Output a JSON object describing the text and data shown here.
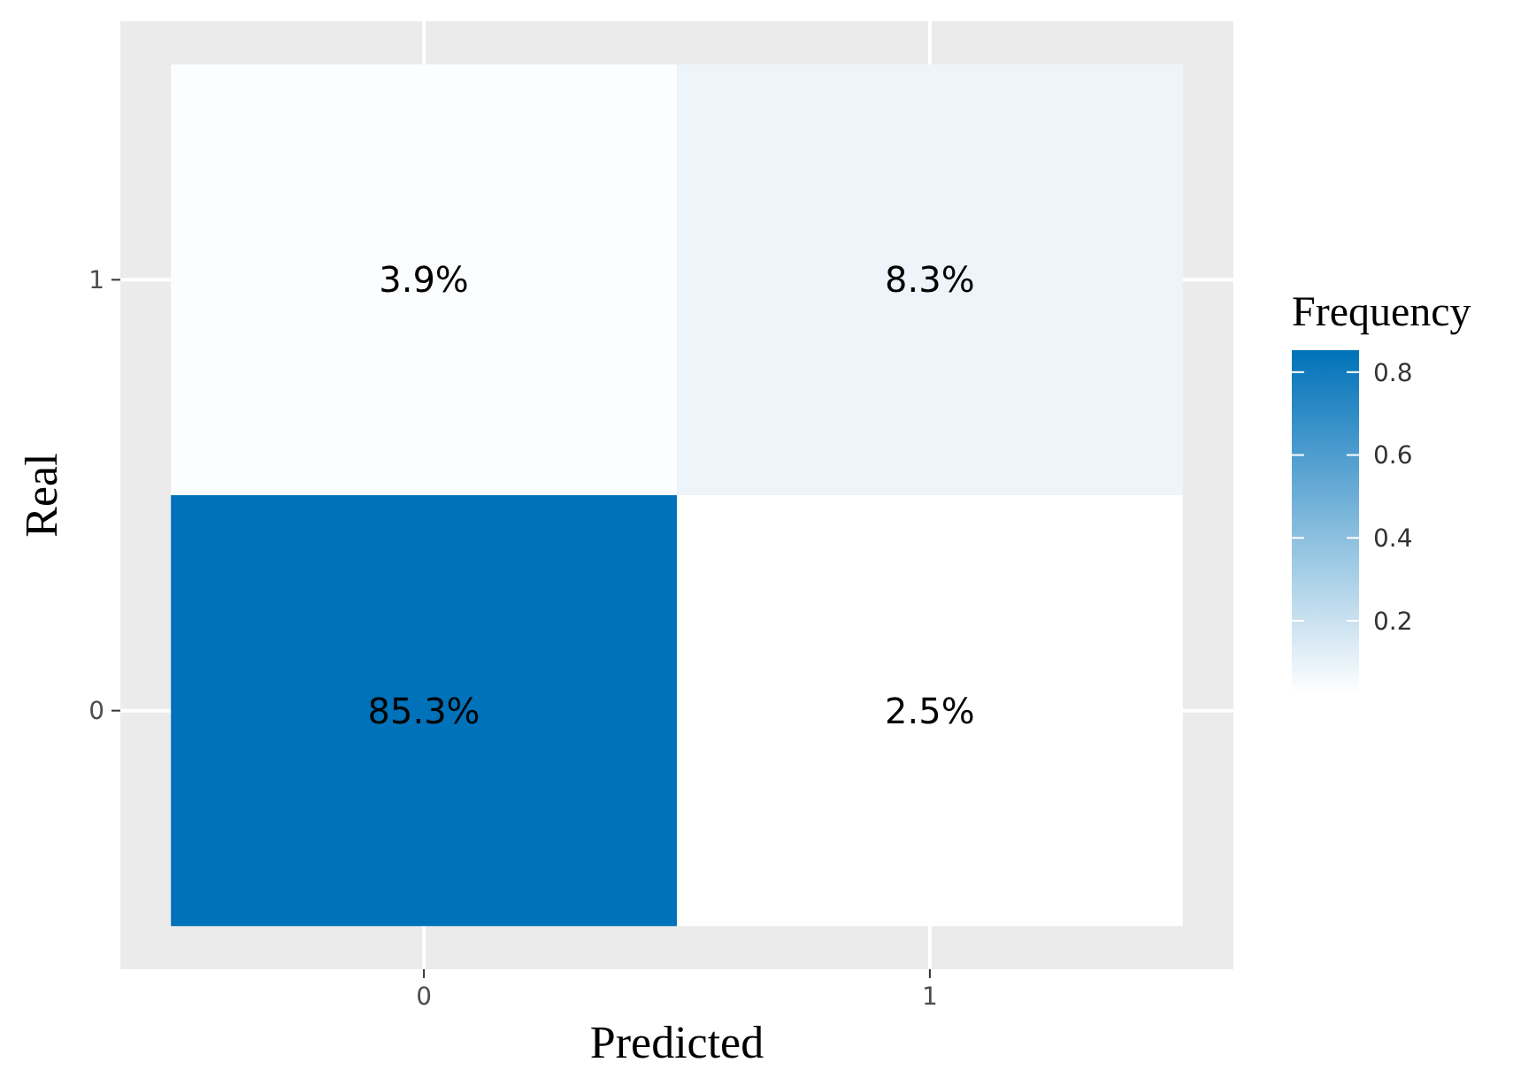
{
  "chart_data": {
    "type": "heatmap",
    "xlabel": "Predicted",
    "ylabel": "Real",
    "clabel": "Frequency",
    "categories": [
      "0",
      "1"
    ],
    "y_categories": [
      "1",
      "0"
    ],
    "cells": [
      [
        0.039,
        0.083
      ],
      [
        0.853,
        0.025
      ]
    ],
    "cell_labels": [
      [
        "3.9%",
        "8.3%"
      ],
      [
        "85.3%",
        "2.5%"
      ]
    ],
    "clim": [
      0.025,
      0.853
    ],
    "cticks": [
      {
        "value": 0.2,
        "label": "0.2"
      },
      {
        "value": 0.4,
        "label": "0.4"
      },
      {
        "value": 0.6,
        "label": "0.6"
      },
      {
        "value": 0.8,
        "label": "0.8"
      }
    ],
    "grid": true
  }
}
